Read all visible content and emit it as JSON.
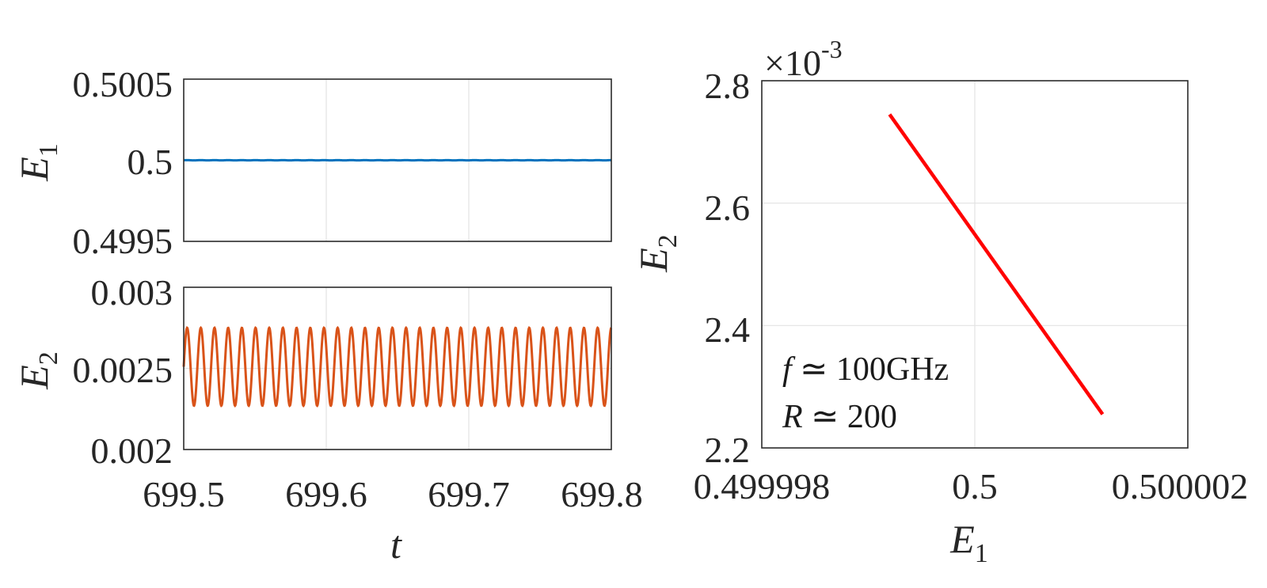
{
  "chart_data": [
    {
      "type": "line",
      "panel": "top-left",
      "ylabel": "E",
      "ylabel_sub": "1",
      "xlim": [
        699.5,
        699.8
      ],
      "ylim": [
        0.4995,
        0.5005
      ],
      "yticks": [
        "0.4995",
        "0.5",
        "0.5005"
      ],
      "ytick_values": [
        0.4995,
        0.5,
        0.5005
      ],
      "xtick_values": [
        699.5,
        699.6,
        699.7,
        699.8
      ],
      "grid": true,
      "series": [
        {
          "color": "#0072BD",
          "mean": 0.5,
          "amplitude": 8e-07,
          "period": 0.0096
        }
      ]
    },
    {
      "type": "line",
      "panel": "bottom-left",
      "ylabel": "E",
      "ylabel_sub": "2",
      "xlabel": "t",
      "xlim": [
        699.5,
        699.8
      ],
      "ylim": [
        0.002,
        0.003
      ],
      "yticks": [
        "0.002",
        "0.0025",
        "0.003"
      ],
      "ytick_values": [
        0.002,
        0.0025,
        0.003
      ],
      "xticks": [
        "699.5",
        "699.6",
        "699.7",
        "699.8"
      ],
      "xtick_values": [
        699.5,
        699.6,
        699.7,
        699.8
      ],
      "grid": true,
      "series": [
        {
          "color": "#D95319",
          "mean": 0.00251,
          "amplitude": 0.00024,
          "period": 0.0096
        }
      ]
    },
    {
      "type": "line",
      "panel": "right",
      "xlabel": "E",
      "xlabel_sub": "1",
      "ylabel": "E",
      "ylabel_sub": "2",
      "exponent_label": "×10",
      "exponent_power": "-3",
      "xlim": [
        0.499998,
        0.500002
      ],
      "ylim": [
        2.2,
        2.8
      ],
      "xticks": [
        "0.499998",
        "0.5",
        "0.500002"
      ],
      "xtick_values": [
        0.499998,
        0.5,
        0.500002
      ],
      "yticks": [
        "2.2",
        "2.4",
        "2.6",
        "2.8"
      ],
      "ytick_values": [
        2.2,
        2.4,
        2.6,
        2.8
      ],
      "grid": true,
      "series": [
        {
          "color": "#FF0000",
          "x": [
            0.4999992,
            0.5000012
          ],
          "y": [
            2.745,
            2.255
          ]
        }
      ],
      "annotations": [
        {
          "var": "f",
          "text": " ≃ 100GHz"
        },
        {
          "var": "R",
          "text": " ≃ 200"
        }
      ]
    }
  ]
}
